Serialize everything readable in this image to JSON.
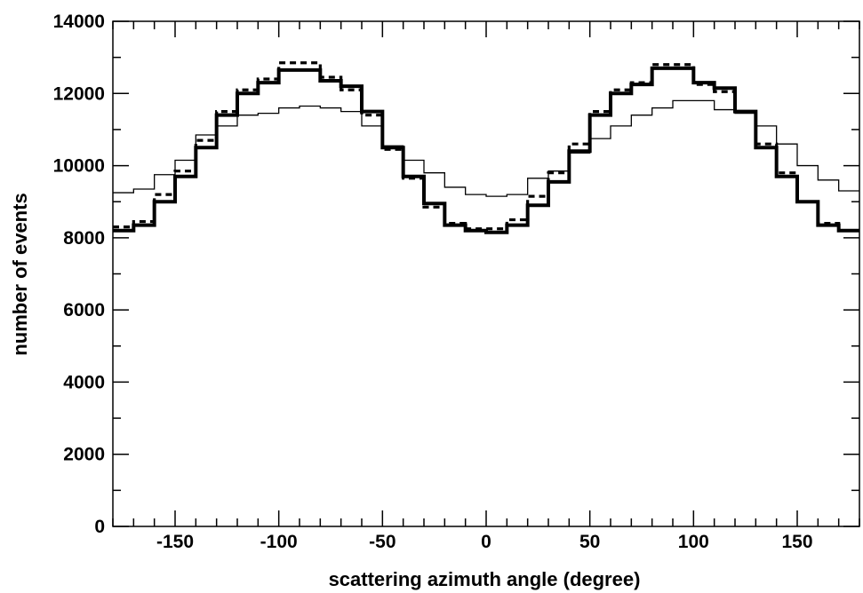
{
  "chart_data": {
    "type": "line",
    "title": "",
    "xlabel": "scattering azimuth angle (degree)",
    "ylabel": "number of events",
    "xlim": [
      -180,
      180
    ],
    "ylim": [
      0,
      14000
    ],
    "grid": false,
    "bin_width": 10,
    "x_bin_edges": [
      -180,
      -170,
      -160,
      -150,
      -140,
      -130,
      -120,
      -110,
      -100,
      -90,
      -80,
      -70,
      -60,
      -50,
      -40,
      -30,
      -20,
      -10,
      0,
      10,
      20,
      30,
      40,
      50,
      60,
      70,
      80,
      90,
      100,
      110,
      120,
      130,
      140,
      150,
      160,
      170,
      180
    ],
    "x_ticks": [
      {
        "value": -150,
        "label": "-150"
      },
      {
        "value": -100,
        "label": "-100"
      },
      {
        "value": -50,
        "label": "-50"
      },
      {
        "value": 0,
        "label": "0"
      },
      {
        "value": 50,
        "label": "50"
      },
      {
        "value": 100,
        "label": "100"
      },
      {
        "value": 150,
        "label": "150"
      }
    ],
    "y_ticks": [
      {
        "value": 0,
        "label": "0"
      },
      {
        "value": 2000,
        "label": "2000"
      },
      {
        "value": 4000,
        "label": "4000"
      },
      {
        "value": 6000,
        "label": "6000"
      },
      {
        "value": 8000,
        "label": "8000"
      },
      {
        "value": 10000,
        "label": "10000"
      },
      {
        "value": 12000,
        "label": "12000"
      },
      {
        "value": 14000,
        "label": "14000"
      }
    ],
    "series": [
      {
        "style": "thick-solid",
        "values": [
          8200,
          8350,
          9000,
          9700,
          10500,
          11400,
          12000,
          12300,
          12650,
          12650,
          12350,
          12200,
          11500,
          10500,
          9700,
          8950,
          8350,
          8200,
          8150,
          8350,
          8900,
          9550,
          10400,
          11400,
          12000,
          12250,
          12700,
          12700,
          12300,
          12150,
          11500,
          10500,
          9700,
          9000,
          8350,
          8200
        ]
      },
      {
        "style": "dashed",
        "values": [
          8300,
          8450,
          9200,
          9850,
          10700,
          11500,
          12100,
          12400,
          12850,
          12850,
          12450,
          12100,
          11400,
          10450,
          9650,
          8850,
          8400,
          8250,
          8250,
          8500,
          9150,
          9800,
          10600,
          11500,
          12100,
          12300,
          12800,
          12800,
          12250,
          12050,
          11500,
          10600,
          9800,
          9000,
          8400,
          8200
        ]
      },
      {
        "style": "thin-solid",
        "values": [
          9250,
          9350,
          9750,
          10150,
          10850,
          11100,
          11400,
          11450,
          11600,
          11650,
          11600,
          11500,
          11100,
          10550,
          10150,
          9800,
          9400,
          9200,
          9150,
          9200,
          9650,
          9850,
          10350,
          10750,
          11100,
          11400,
          11600,
          11800,
          11800,
          11550,
          11450,
          11100,
          10600,
          10000,
          9600,
          9300
        ]
      }
    ]
  }
}
